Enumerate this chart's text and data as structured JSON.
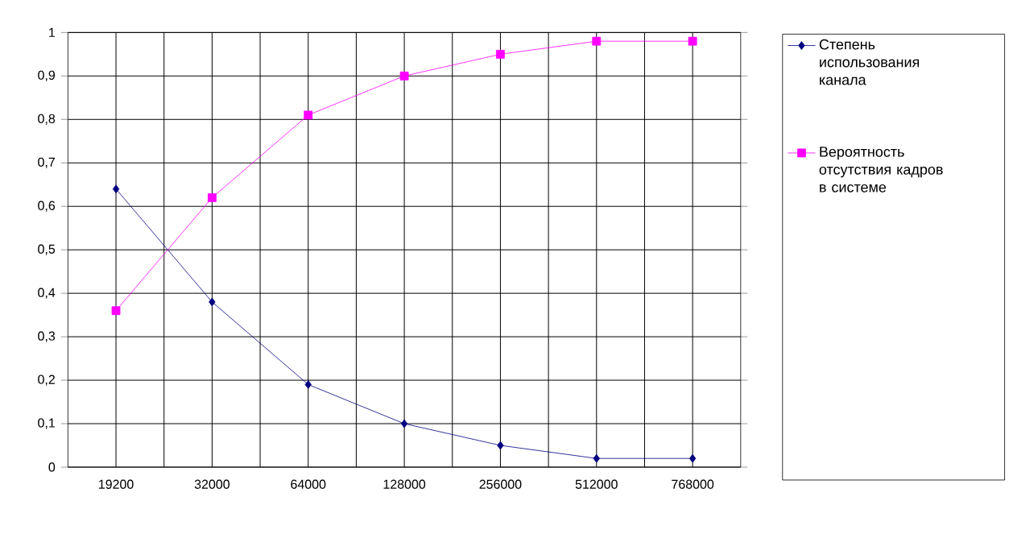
{
  "chart_data": {
    "type": "line",
    "categories": [
      "19200",
      "32000",
      "64000",
      "128000",
      "256000",
      "512000",
      "768000"
    ],
    "series": [
      {
        "name": "Степень использования канала",
        "color": "#000080",
        "marker": "diamond",
        "values": [
          0.64,
          0.38,
          0.19,
          0.1,
          0.05,
          0.02,
          0.02
        ]
      },
      {
        "name": "Вероятность отсутствия кадров в системе",
        "color": "#ff00ff",
        "marker": "square",
        "values": [
          0.36,
          0.62,
          0.81,
          0.9,
          0.95,
          0.98,
          0.98
        ]
      }
    ],
    "ylim": [
      0,
      1
    ],
    "yticks": [
      0,
      {
        "value": 0.1,
        "label": "0,1"
      },
      {
        "value": 0.2,
        "label": "0,2"
      },
      {
        "value": 0.3,
        "label": "0,3"
      },
      {
        "value": 0.4,
        "label": "0,4"
      },
      {
        "value": 0.5,
        "label": "0,5"
      },
      {
        "value": 0.6,
        "label": "0,6"
      },
      {
        "value": 0.7,
        "label": "0,7"
      },
      {
        "value": 0.8,
        "label": "0,8"
      },
      {
        "value": 0.9,
        "label": "0,9"
      },
      1
    ],
    "grid": true,
    "legend": "right",
    "line_style": "solid"
  }
}
